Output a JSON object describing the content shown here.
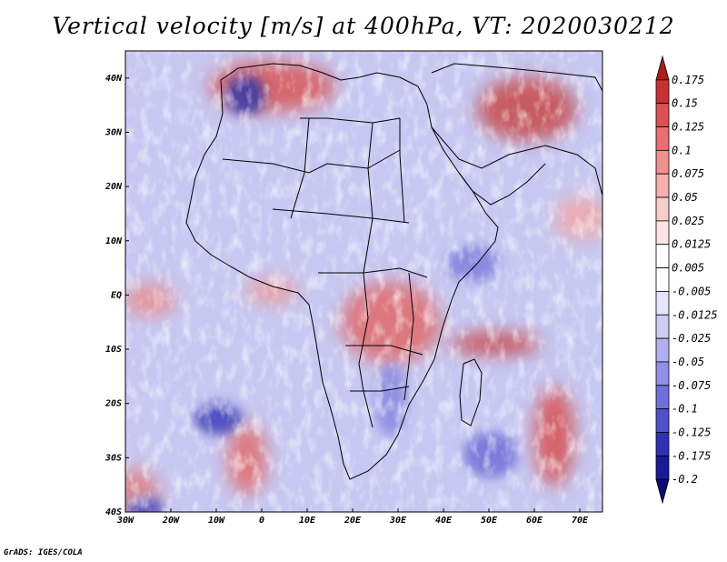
{
  "title": "Vertical velocity [m/s] at 400hPa, VT: 2020030212",
  "footer": "GrADS: IGES/COLA",
  "map": {
    "lon_range": [
      -30,
      75
    ],
    "lat_range": [
      -40,
      45
    ],
    "lat_ticks": [
      "40N",
      "30N",
      "20N",
      "10N",
      "EQ",
      "10S",
      "20S",
      "30S",
      "40S"
    ],
    "lon_ticks": [
      "30W",
      "20W",
      "10W",
      "0",
      "10E",
      "20E",
      "30E",
      "40E",
      "50E",
      "60E",
      "70E"
    ],
    "background_color": "#c6c8f2"
  },
  "colorbar": {
    "levels": [
      "0.175",
      "0.15",
      "0.125",
      "0.1",
      "0.075",
      "0.05",
      "0.025",
      "0.0125",
      "0.005",
      "-0.005",
      "-0.0125",
      "-0.025",
      "-0.05",
      "-0.075",
      "-0.1",
      "-0.125",
      "-0.175",
      "-0.2"
    ],
    "colors": [
      "#b01a1a",
      "#c83232",
      "#dc5050",
      "#e87070",
      "#f09090",
      "#f5b0b0",
      "#f9cccc",
      "#fce4e4",
      "#ffffff",
      "#ffffff",
      "#e4e4fa",
      "#ccccf5",
      "#b0b0f0",
      "#9090e8",
      "#7070dc",
      "#5050cc",
      "#3030b4",
      "#1a1a96",
      "#0c0c78"
    ]
  },
  "features": [
    {
      "name": "ascent-nw-africa",
      "sign": "up"
    },
    {
      "name": "ascent-arabia",
      "sign": "up"
    },
    {
      "name": "ascent-central-africa",
      "sign": "up"
    },
    {
      "name": "ascent-indian-ocean-band",
      "sign": "up"
    },
    {
      "name": "ascent-south-atlantic-cyclone",
      "sign": "up"
    },
    {
      "name": "ascent-sw-indian-ocean",
      "sign": "up"
    },
    {
      "name": "descent-cyclone-center",
      "sign": "down"
    },
    {
      "name": "descent-morocco",
      "sign": "down"
    }
  ]
}
